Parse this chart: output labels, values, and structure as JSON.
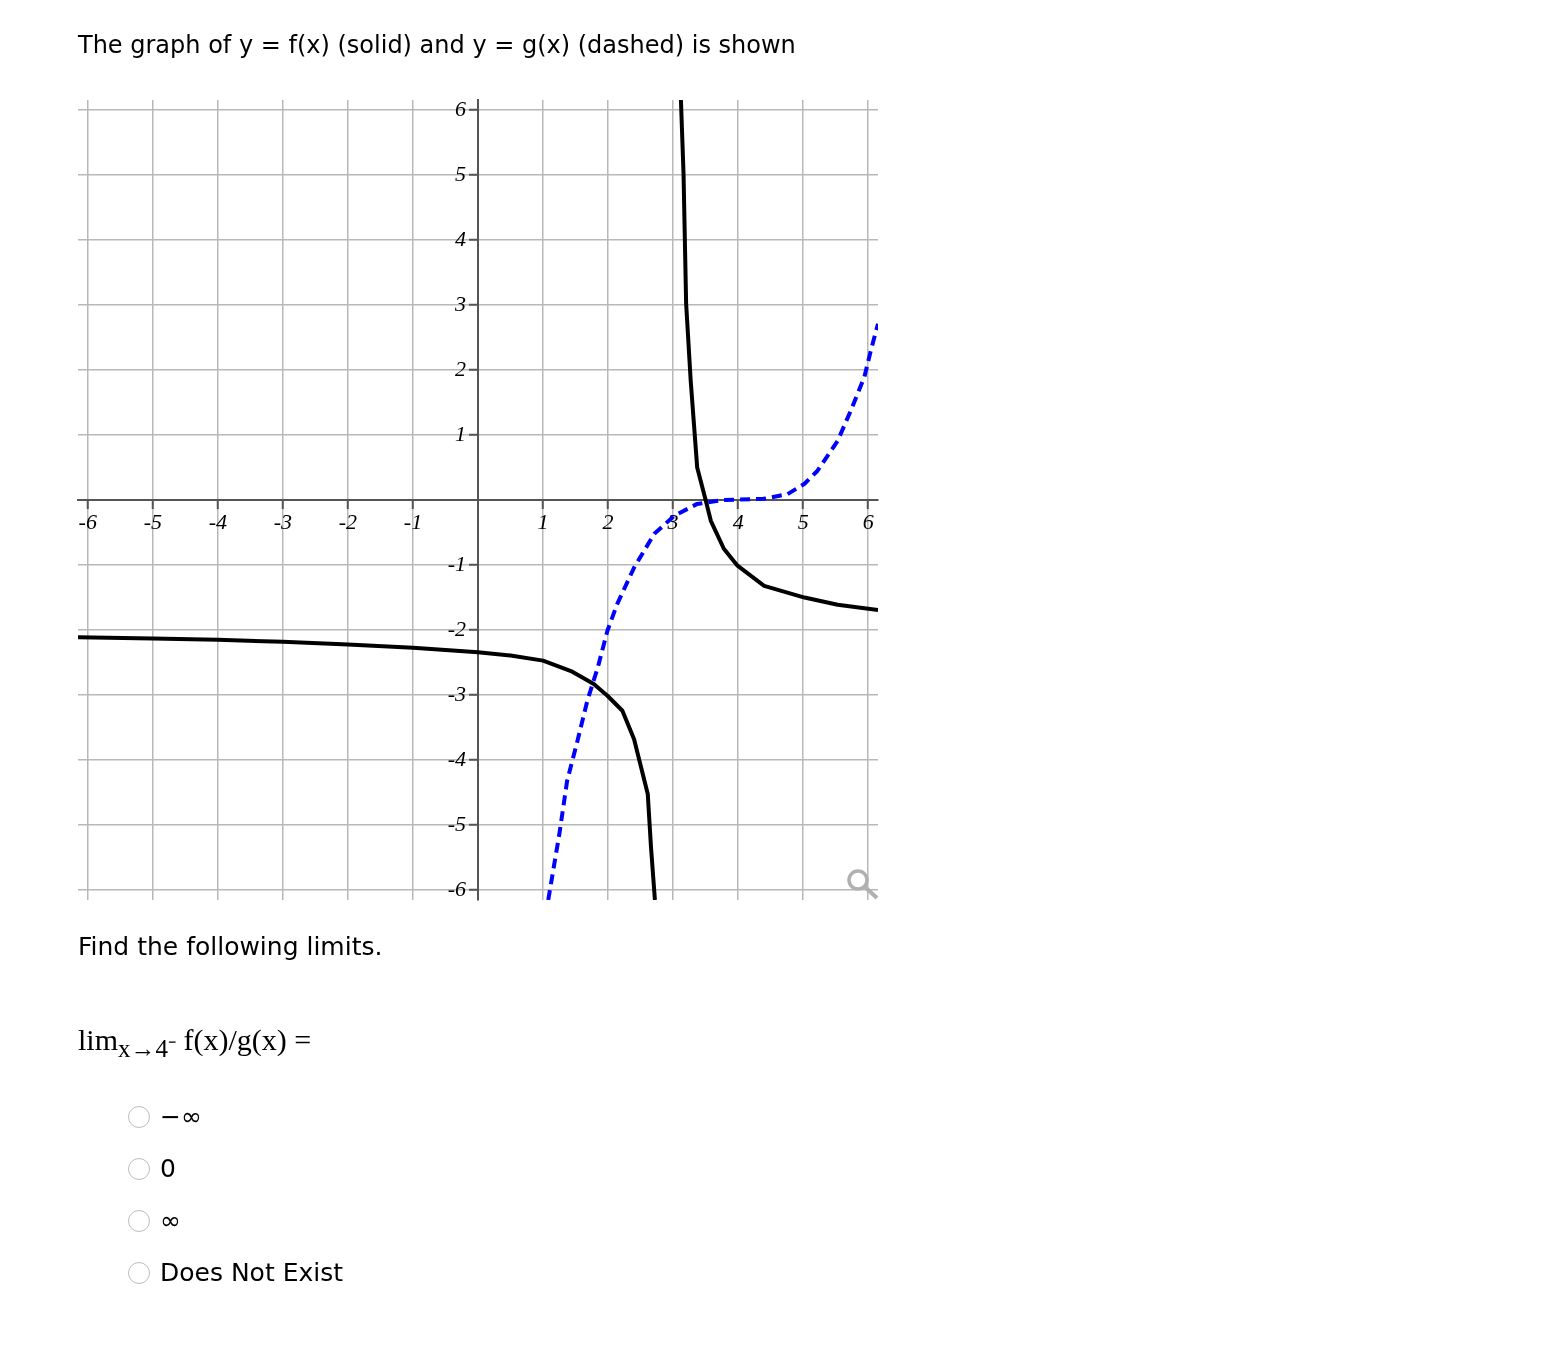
{
  "chart_data": {
    "type": "line",
    "title": "The graph of y = f(x) (solid) and y = g(x) (dashed) is shown",
    "xlim": [
      -6.15,
      6.15
    ],
    "ylim": [
      -6.15,
      6.15
    ],
    "xticks": [
      -6,
      -5,
      -4,
      -3,
      -2,
      -1,
      1,
      2,
      3,
      4,
      5,
      6
    ],
    "yticks": [
      -6,
      -5,
      -4,
      -3,
      -2,
      -1,
      1,
      2,
      3,
      4,
      5,
      6
    ],
    "grid": true,
    "marker": "none",
    "series": [
      {
        "color": "#000000",
        "line_style": "solid",
        "x": [
          -6.15,
          -5,
          -4,
          -3,
          -2,
          -1,
          0,
          0.5,
          1,
          1.43,
          1.78,
          1.99,
          2.22,
          2.4,
          2.61,
          2.66,
          2.72,
          2.9,
          3.12,
          3.16,
          3.2,
          3.27,
          3.37,
          3.5,
          3.58,
          3.78,
          3.99,
          4.4,
          5.02,
          5.53,
          6.15
        ],
        "values": [
          -2.11,
          -2.13,
          -2.15,
          -2.18,
          -2.22,
          -2.27,
          -2.34,
          -2.39,
          -2.47,
          -2.63,
          -2.83,
          -3.01,
          -3.24,
          -3.68,
          -4.52,
          -5.34,
          -6.15,
          null,
          6.15,
          5.02,
          3.02,
          1.84,
          0.5,
          0,
          -0.32,
          -0.75,
          -1.01,
          -1.32,
          -1.5,
          -1.61,
          -1.69
        ]
      },
      {
        "color": "#0000ff",
        "line_style": "dashed",
        "x": [
          1.08,
          1.25,
          1.37,
          1.53,
          1.68,
          1.84,
          1.99,
          2.14,
          2.4,
          2.71,
          3.02,
          3.37,
          3.78,
          4.4,
          4.76,
          5.02,
          5.22,
          5.53,
          5.73,
          5.94,
          6.04,
          6.15
        ],
        "values": [
          -6.15,
          -5.14,
          -4.32,
          -3.7,
          -3.09,
          -2.58,
          -2.01,
          -1.6,
          -1.04,
          -0.52,
          -0.24,
          -0.06,
          0,
          0.02,
          0.09,
          0.25,
          0.45,
          0.91,
          1.37,
          1.89,
          2.3,
          2.71
        ]
      }
    ],
    "annotations": [
      "Find the following limits.",
      "lim$_{x→4⁻}$ f(x)/g(x) =",
      "−∞",
      "0",
      "∞",
      "Does Not Exist"
    ]
  }
}
